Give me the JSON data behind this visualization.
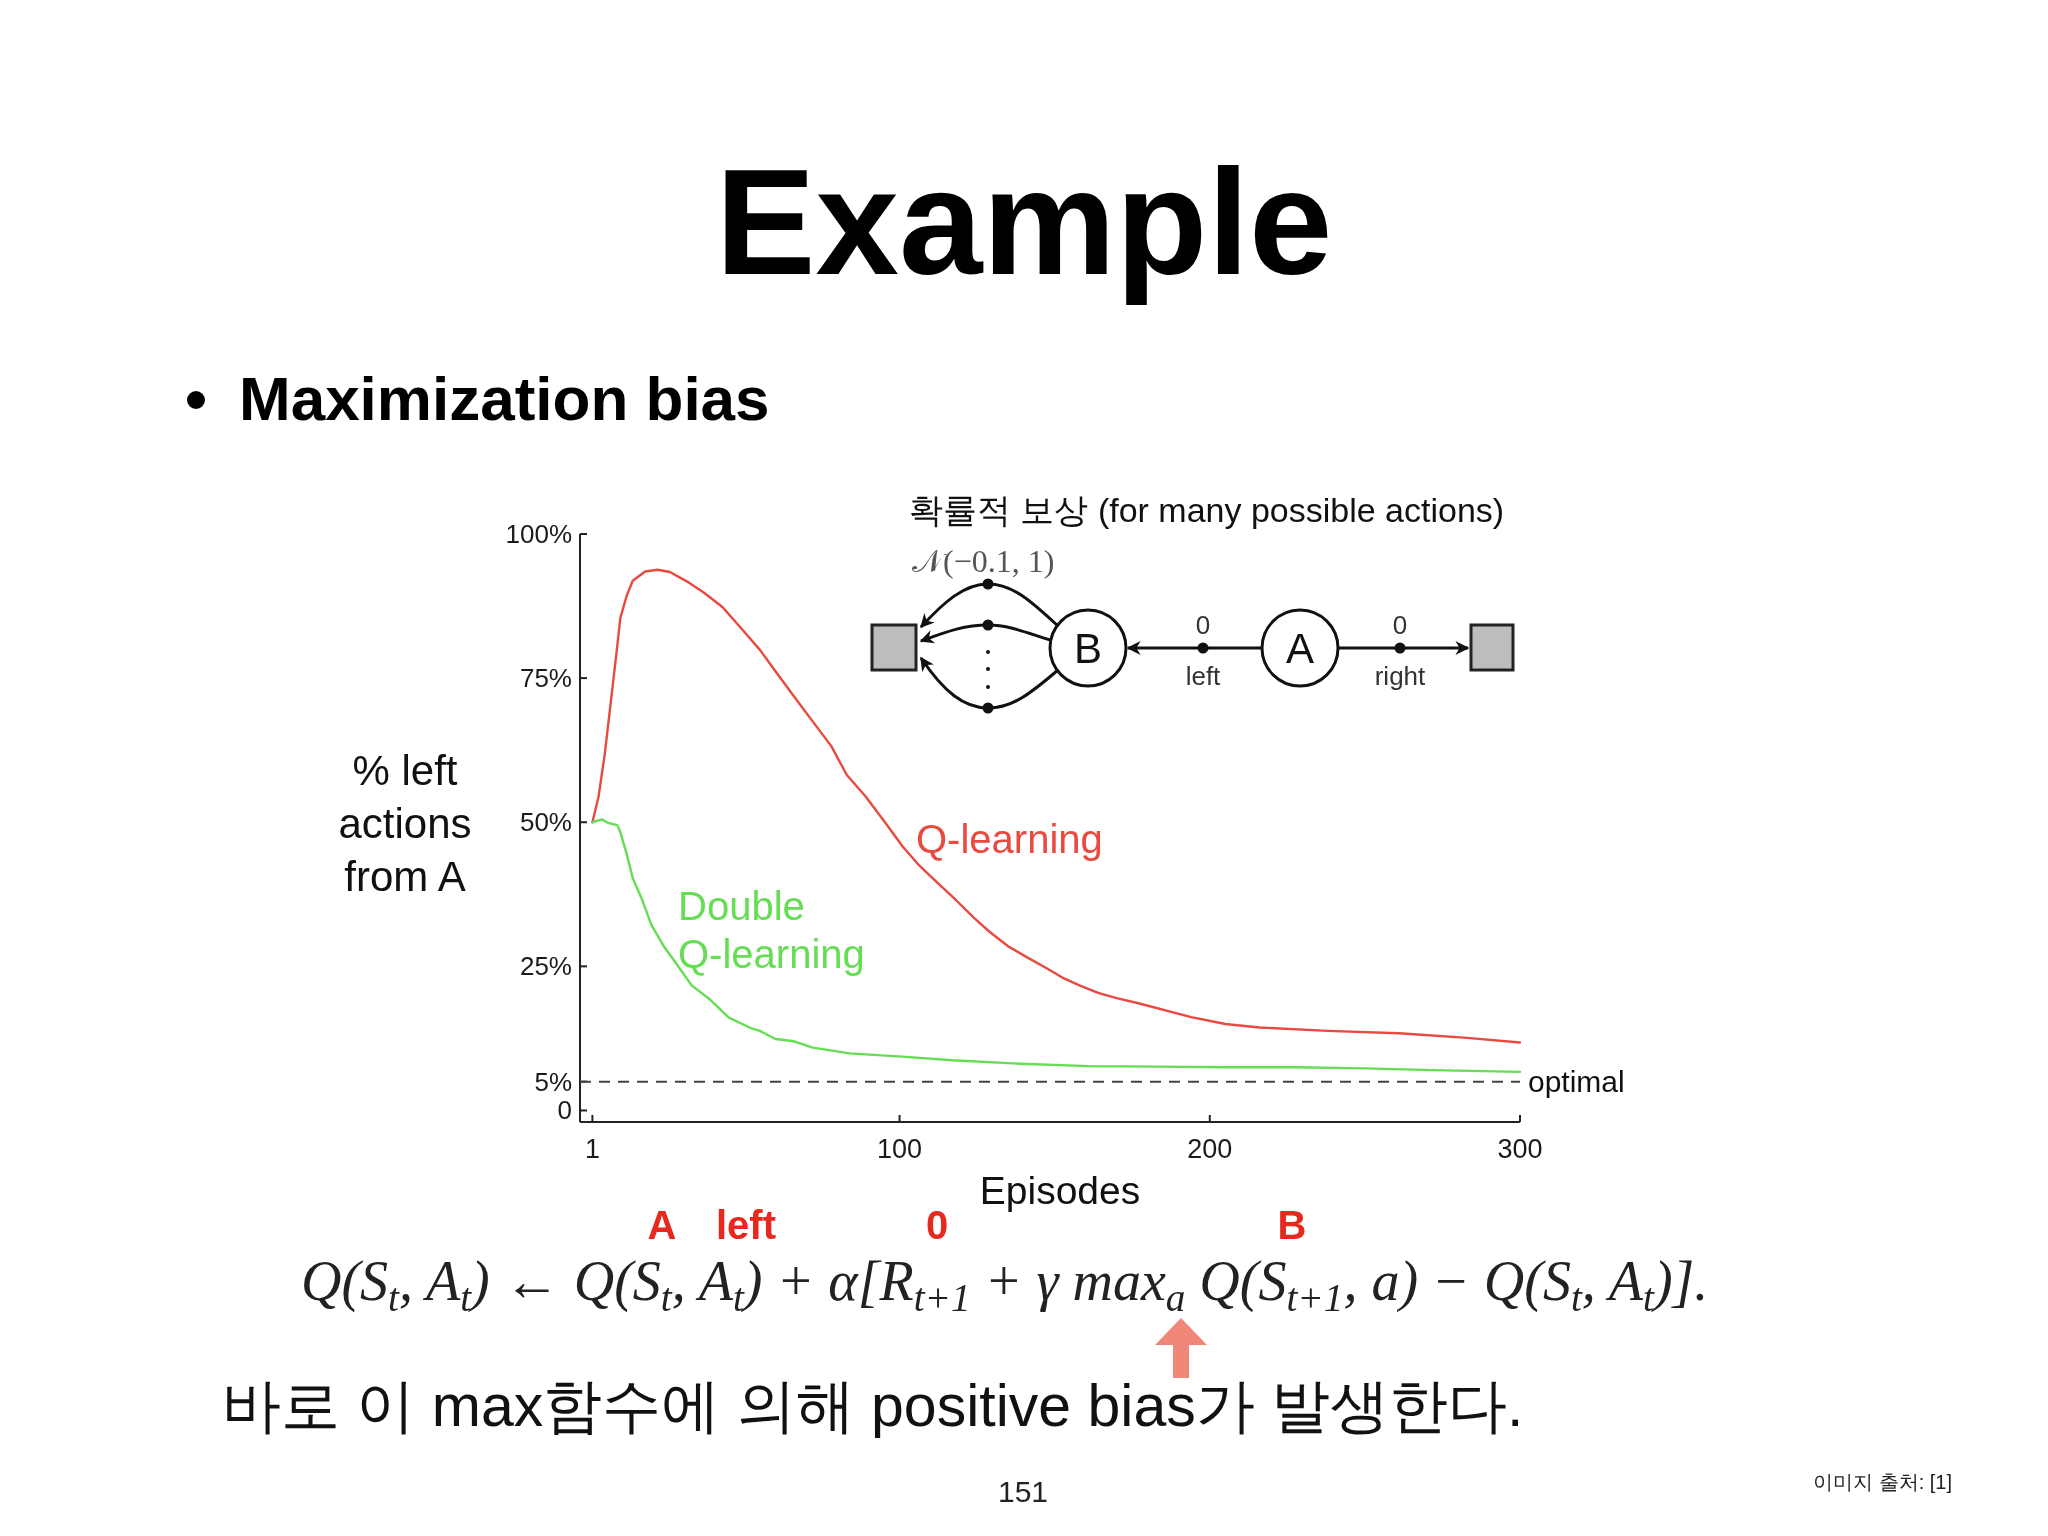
{
  "chart_data": {
    "type": "line",
    "title": "Example",
    "subtitle": "Maximization bias",
    "xlabel": "Episodes",
    "ylabel": "% left actions from A",
    "xlim": [
      -3,
      300
    ],
    "xticks": [
      1,
      100,
      200,
      300
    ],
    "ylim": [
      -2,
      100
    ],
    "yticks": [
      0,
      {
        "value": 5,
        "label": "5%"
      },
      {
        "value": 25,
        "label": "25%"
      },
      {
        "value": 50,
        "label": "50%"
      },
      {
        "value": 75,
        "label": "75%"
      },
      {
        "value": 100,
        "label": "100%"
      }
    ],
    "series": [
      {
        "name": "Q-learning",
        "color": "#e84a3f",
        "x": [
          1,
          3,
          5,
          7,
          9,
          10,
          12,
          14,
          18,
          22,
          26,
          32,
          37,
          43,
          49,
          55,
          60,
          66,
          72,
          78,
          83,
          89,
          95,
          101,
          106,
          112,
          118,
          124,
          129,
          135,
          141,
          147,
          153,
          158,
          164,
          170,
          177,
          194,
          205,
          216,
          238,
          261,
          283,
          300
        ],
        "values": [
          50,
          54.5,
          61.9,
          71.2,
          80.5,
          85.4,
          89.2,
          91.9,
          93.5,
          93.8,
          93.4,
          91.6,
          89.8,
          87.3,
          83.6,
          79.9,
          76.2,
          71.8,
          67.5,
          63.2,
          58.2,
          54.5,
          50.2,
          45.8,
          42.7,
          39.6,
          36.6,
          33.4,
          31.0,
          28.5,
          26.6,
          24.8,
          22.9,
          21.7,
          20.4,
          19.5,
          18.6,
          16.2,
          15.0,
          14.4,
          13.8,
          13.4,
          12.6,
          11.8
        ]
      },
      {
        "name": "Double Q-learning",
        "color": "#66dd55",
        "x": [
          1,
          4,
          6,
          9,
          10,
          12,
          14,
          17,
          20,
          24,
          28,
          33,
          39,
          45,
          52,
          55,
          60,
          66,
          72,
          84,
          102,
          117,
          139,
          161,
          183,
          205,
          228,
          250,
          272,
          300
        ],
        "values": [
          50,
          50.5,
          49.9,
          49.5,
          48.3,
          44.6,
          40.3,
          36.6,
          32.2,
          28.5,
          25.5,
          21.7,
          19.2,
          16.1,
          14.3,
          13.8,
          12.4,
          12.0,
          10.9,
          9.9,
          9.3,
          8.7,
          8.1,
          7.7,
          7.6,
          7.5,
          7.5,
          7.3,
          7.0,
          6.7
        ]
      }
    ],
    "ref_lines": [
      {
        "axis": "y",
        "value": 5,
        "label": "optimal",
        "line_style": "dashed",
        "color": "#444444"
      }
    ],
    "annotations": [
      "확률적 보상 (for many possible actions)",
      "𝒩(−0.1, 1)",
      "B",
      "0",
      "left",
      "A",
      "0",
      "right",
      "A",
      "left",
      "0",
      "B",
      "Q(S$_{t}$, A$_{t}$) ← Q(S$_{t}$, A$_{t}$) + α[R$_{t+1}$ + γ max$_{a}$ Q(S$_{t+1}$, a) − Q(S$_{t}$, A$_{t}$)].",
      "바로 이 max함수에 의해 positive bias가 발생한다.",
      "151",
      "이미지 출처: [1]"
    ]
  }
}
